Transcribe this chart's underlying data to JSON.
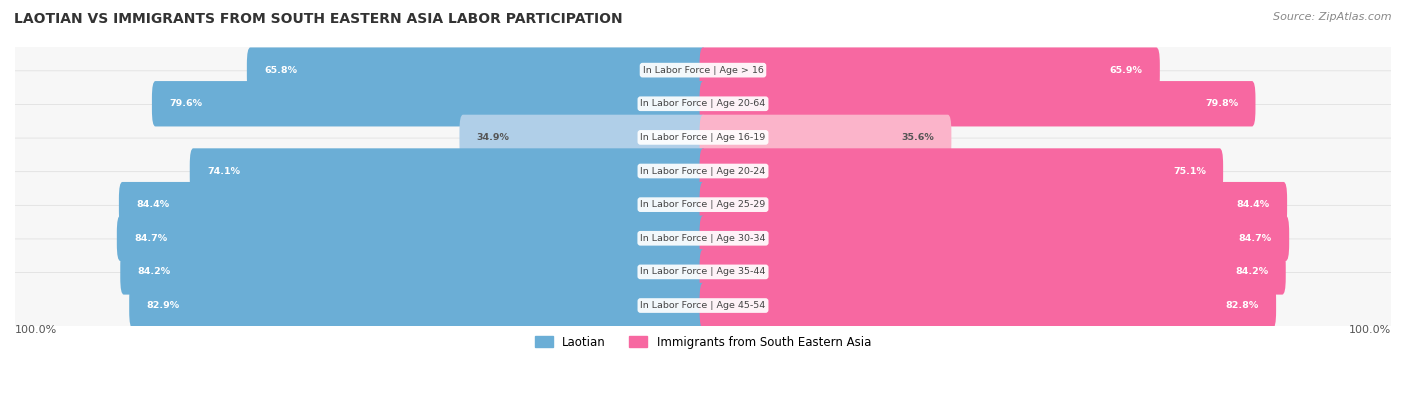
{
  "title": "LAOTIAN VS IMMIGRANTS FROM SOUTH EASTERN ASIA LABOR PARTICIPATION",
  "source": "Source: ZipAtlas.com",
  "categories": [
    "In Labor Force | Age > 16",
    "In Labor Force | Age 20-64",
    "In Labor Force | Age 16-19",
    "In Labor Force | Age 20-24",
    "In Labor Force | Age 25-29",
    "In Labor Force | Age 30-34",
    "In Labor Force | Age 35-44",
    "In Labor Force | Age 45-54"
  ],
  "laotian_values": [
    65.8,
    79.6,
    34.9,
    74.1,
    84.4,
    84.7,
    84.2,
    82.9
  ],
  "immigrant_values": [
    65.9,
    79.8,
    35.6,
    75.1,
    84.4,
    84.7,
    84.2,
    82.8
  ],
  "laotian_color": "#6baed6",
  "laotian_color_light": "#b0cfe8",
  "immigrant_color": "#f768a1",
  "immigrant_color_light": "#fbb4ca",
  "max_value": 100.0,
  "legend_laotian": "Laotian",
  "legend_immigrant": "Immigrants from South Eastern Asia",
  "light_threshold": 50
}
